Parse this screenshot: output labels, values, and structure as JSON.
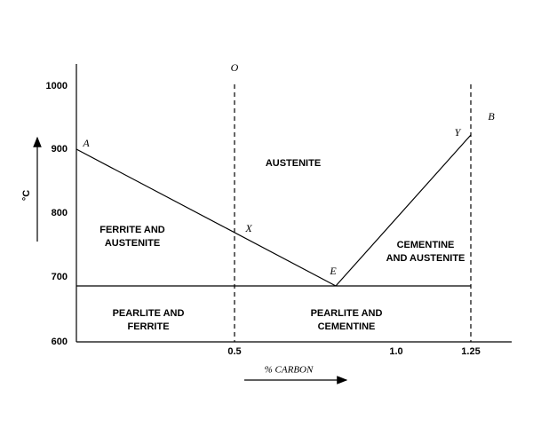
{
  "axes": {
    "y_label": "°C",
    "x_label": "% CARBON",
    "y_ticks": [
      "1000",
      "900",
      "800",
      "700",
      "600"
    ],
    "x_ticks": [
      "0.5",
      "1.0",
      "1.25"
    ]
  },
  "points": {
    "O": "O",
    "A": "A",
    "X": "X",
    "E": "E",
    "Y": "Y",
    "B": "B"
  },
  "regions": [
    {
      "lines": [
        "AUSTENITE"
      ]
    },
    {
      "lines": [
        "FERRITE AND",
        "AUSTENITE"
      ]
    },
    {
      "lines": [
        "CEMENTINE",
        "AND AUSTENITE"
      ]
    },
    {
      "lines": [
        "PEARLITE AND",
        "FERRITE"
      ]
    },
    {
      "lines": [
        "PEARLITE AND",
        "CEMENTINE"
      ]
    }
  ]
}
